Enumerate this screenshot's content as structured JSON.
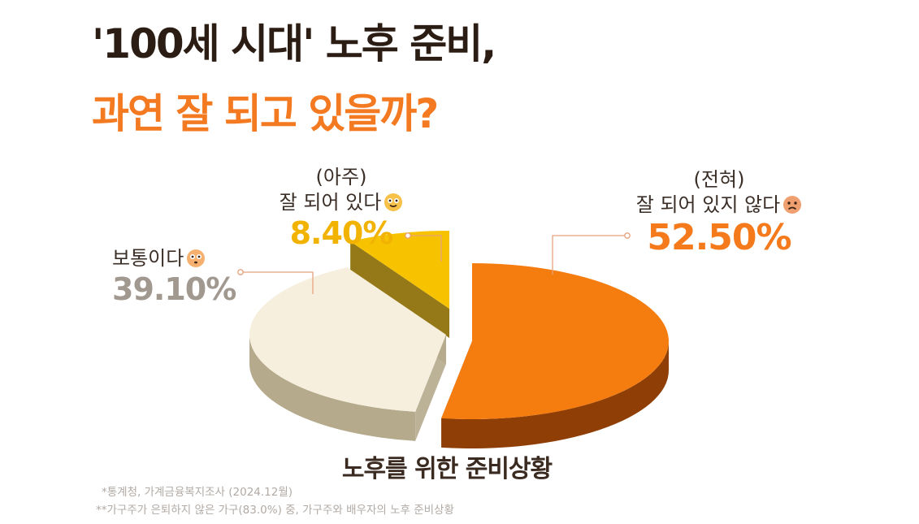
{
  "header": {
    "title_line1": "'100세 시대' 노후 준비,",
    "title_line2": "과연 잘 되고 있을까?"
  },
  "chart_data": {
    "type": "pie",
    "title": "노후를 위한 준비상황",
    "slices": [
      {
        "label_line1": "(전혀)",
        "label_line2": "잘 되어 있지 않다",
        "value": 52.5,
        "value_label": "52.50%",
        "color": "#f57c0f"
      },
      {
        "label_line1": "",
        "label_line2": "보통이다",
        "value": 39.1,
        "value_label": "39.10%",
        "color": "#f6efdd"
      },
      {
        "label_line1": "(아주)",
        "label_line2": "잘 되어 있다",
        "value": 8.4,
        "value_label": "8.40%",
        "color": "#f7c300"
      }
    ],
    "legend": "none"
  },
  "footnotes": {
    "source": "*통계청, 가계금융복지조사 (2024.12월)",
    "note": "**가구주가 은퇴하지 않은 가구(83.0%) 중, 가구주와 배우자의 노후 준비상황"
  },
  "icons": {
    "happy": "smiling-face-icon",
    "neutral": "flushed-face-icon",
    "sad": "frowning-face-icon"
  }
}
